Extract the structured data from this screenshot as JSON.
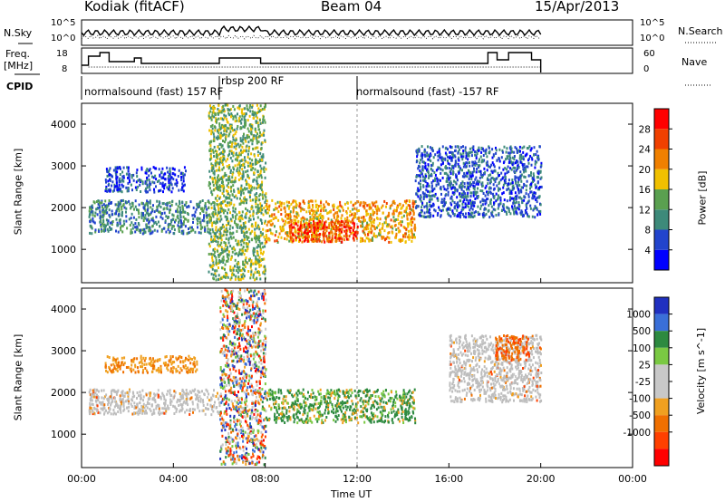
{
  "header": {
    "station": "Kodiak (fitACF)",
    "beam": "Beam 04",
    "date": "15/Apr/2013"
  },
  "top_panels": {
    "nsky_label": "N.Sky",
    "nsearch_label": "N.Search",
    "noise_ticks": [
      "10^5",
      "10^0"
    ],
    "freq_label_1": "Freq.",
    "freq_label_2": "[MHz]",
    "freq_ticks": [
      "18",
      "8"
    ],
    "nave_label": "Nave",
    "nave_ticks": [
      "60",
      "0"
    ],
    "cpid_label": "CPID",
    "cpid_segments": [
      {
        "text": "normalsound (fast) 157 RF"
      },
      {
        "text": "rbsp 200 RF"
      },
      {
        "text": "normalsound (fast) -157 RF"
      }
    ]
  },
  "colors": {
    "power": [
      "#0000ff",
      "#2244cc",
      "#3d8a7a",
      "#5aa050",
      "#f0c000",
      "#f08000",
      "#f04000",
      "#ff0000"
    ],
    "velocity": [
      "#2030c0",
      "#3a6fd8",
      "#2d8a40",
      "#7ac943",
      "#c8c8c8",
      "#c8c8c8",
      "#f0a020",
      "#f07000",
      "#ff4000",
      "#ff0000"
    ],
    "ground": "#bdbdbd"
  },
  "chart_data": [
    {
      "type": "heatmap",
      "name": "power",
      "ylabel": "Slant Range [km]",
      "ylim": [
        200,
        4500
      ],
      "yticks": [
        "4000",
        "3000",
        "2000",
        "1000"
      ],
      "xlim": [
        "00:00",
        "24:00"
      ],
      "colorbar_label": "Power [dB]",
      "colorbar_ticks": [
        "28",
        "24",
        "20",
        "16",
        "12",
        "8",
        "4"
      ],
      "colorbar_range": [
        0,
        32
      ],
      "regions": [
        {
          "t": [
            0.3,
            5.5
          ],
          "r": [
            1400,
            2200
          ],
          "level": 10
        },
        {
          "t": [
            1.0,
            4.5
          ],
          "r": [
            2400,
            3000
          ],
          "level": 6
        },
        {
          "t": [
            5.5,
            8.0
          ],
          "r": [
            300,
            4500
          ],
          "level": 14
        },
        {
          "t": [
            8.0,
            14.5
          ],
          "r": [
            1200,
            2200
          ],
          "level": 20
        },
        {
          "t": [
            9.0,
            12.0
          ],
          "r": [
            1200,
            1700
          ],
          "level": 27
        },
        {
          "t": [
            14.5,
            20.0
          ],
          "r": [
            1800,
            3500
          ],
          "level": 7
        }
      ]
    },
    {
      "type": "heatmap",
      "name": "velocity",
      "ylabel": "Slant Range [km]",
      "ylim": [
        200,
        4500
      ],
      "yticks": [
        "4000",
        "3000",
        "2000",
        "1000"
      ],
      "xlim": [
        "00:00",
        "24:00"
      ],
      "xticks": [
        "00:00",
        "04:00",
        "08:00",
        "12:00",
        "16:00",
        "20:00",
        "00:00"
      ],
      "xlabel": "Time UT",
      "colorbar_label": "Velocity [m s^-1]",
      "colorbar_ticks": [
        "1000",
        "500",
        "100",
        "25",
        "-25",
        "-100",
        "-500",
        "-1000"
      ],
      "regions": [
        {
          "t": [
            0.3,
            6.0
          ],
          "r": [
            1500,
            2100
          ],
          "class": "ground"
        },
        {
          "t": [
            1.0,
            5.0
          ],
          "r": [
            2500,
            2900
          ],
          "class": "-100"
        },
        {
          "t": [
            6.0,
            8.0
          ],
          "r": [
            300,
            4500
          ],
          "class": "mixed"
        },
        {
          "t": [
            8.0,
            14.5
          ],
          "r": [
            1300,
            2100
          ],
          "class": "100"
        },
        {
          "t": [
            16.0,
            20.0
          ],
          "r": [
            1800,
            3400
          ],
          "class": "ground"
        },
        {
          "t": [
            18.0,
            19.5
          ],
          "r": [
            2800,
            3400
          ],
          "class": "-500"
        }
      ]
    }
  ]
}
